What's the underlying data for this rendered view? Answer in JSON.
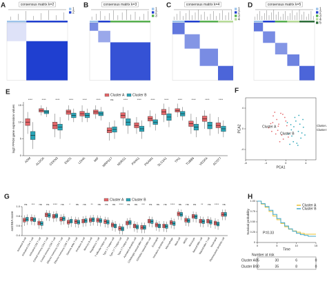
{
  "chart_data": [
    {
      "type": "heatmap",
      "panel": "A",
      "title": "consensus matrix k=2",
      "legend": [
        1,
        2
      ]
    },
    {
      "type": "heatmap",
      "panel": "B",
      "title": "consensus matrix k=3",
      "legend": [
        1,
        2,
        3
      ]
    },
    {
      "type": "heatmap",
      "panel": "C",
      "title": "consensus matrix k=4",
      "legend": [
        1,
        2,
        3,
        4
      ]
    },
    {
      "type": "heatmap",
      "panel": "D",
      "title": "consensus matrix k=5",
      "legend": [
        1,
        2,
        3,
        4,
        5
      ]
    },
    {
      "type": "box",
      "panel": "E",
      "y_label": "log2 FPKM gene expression values",
      "categories": [
        "ADM",
        "ALDOA",
        "CDKN3",
        "ENO1",
        "LDHA",
        "MIF",
        "MRPS17",
        "NDRG1",
        "P4HA1",
        "PGAM1",
        "SLC2A1",
        "TPI1",
        "TUBB6",
        "VEGFA",
        "ACOT7"
      ],
      "significance": [
        "****",
        "****",
        "****",
        "****",
        "****",
        "****",
        "ns",
        "****",
        "****",
        "****",
        "****",
        "****",
        "****",
        "****",
        "****"
      ],
      "ylim": [
        0,
        16
      ],
      "yticks": [
        0,
        5,
        10,
        15
      ],
      "series": [
        {
          "name": "Cluster A",
          "color": "#e4676a",
          "lo": [
            6.5,
            12,
            5.5,
            10.5,
            10,
            11,
            4.5,
            9,
            6.5,
            8.5,
            10,
            11.5,
            6.5,
            8,
            6.5
          ],
          "q1": [
            9,
            13,
            8,
            12.3,
            11.8,
            12.4,
            6.8,
            11.2,
            8.3,
            10.3,
            12.2,
            13,
            8.7,
            10.2,
            8.3
          ],
          "median": [
            10,
            13.5,
            9,
            13,
            12.5,
            13,
            7.5,
            12,
            9,
            11,
            13,
            13.5,
            9.5,
            11,
            9
          ],
          "q3": [
            11,
            14,
            10,
            13.6,
            13.2,
            13.6,
            8.3,
            12.8,
            9.8,
            11.7,
            13.8,
            14,
            10.3,
            11.8,
            9.8
          ],
          "hi": [
            13,
            15,
            12.5,
            15,
            15,
            15,
            10,
            14.5,
            11.5,
            13.5,
            15.5,
            15.5,
            12.5,
            13.5,
            11.5
          ]
        },
        {
          "name": "Cluster B",
          "color": "#2aa6b8",
          "lo": [
            2,
            11.5,
            5,
            10,
            10,
            10.5,
            5,
            6.5,
            5,
            7.5,
            8.5,
            10.5,
            5.5,
            6,
            5.5
          ],
          "q1": [
            4.8,
            12.5,
            7.6,
            11.3,
            11.3,
            11.9,
            7,
            9,
            7.2,
            9.3,
            10.5,
            11.8,
            7.6,
            8,
            7.2
          ],
          "median": [
            6,
            13,
            8.5,
            12,
            12,
            12.5,
            7.8,
            10,
            8,
            10,
            11.5,
            12.5,
            8.5,
            9,
            8
          ],
          "q3": [
            7.2,
            13.5,
            9.4,
            12.7,
            12.7,
            13.1,
            8.6,
            11,
            8.8,
            10.7,
            12.5,
            13.2,
            9.4,
            10,
            8.8
          ],
          "hi": [
            10,
            14.5,
            11.5,
            14,
            14,
            14.5,
            10.5,
            13.5,
            10.5,
            12.5,
            14.5,
            14.5,
            11.5,
            12.5,
            10.5
          ]
        }
      ]
    },
    {
      "type": "scatter",
      "panel": "F",
      "x_label": "PCA1",
      "y_label": "PCA2",
      "annotations": [
        "Cluster A",
        "Cluster B"
      ],
      "xlim": [
        -8,
        6
      ],
      "xticks": [
        -8,
        -4,
        0,
        4
      ],
      "ylim": [
        -6,
        6
      ],
      "yticks": [
        -4,
        0,
        4
      ],
      "series": [
        {
          "name": "Cluster A",
          "color": "#e4676a",
          "x": [
            -3,
            -2.5,
            -2,
            -1.5,
            -1,
            -0.5,
            0,
            -2.8,
            -1.8,
            -0.8,
            0.2,
            -2.2,
            -1.2,
            -0.2,
            -3.4,
            -1.6,
            -0.6,
            0.5,
            -2.6,
            -1.4
          ],
          "values": [
            1,
            2.5,
            -1,
            0.5,
            3,
            -2,
            1.5,
            -0.5,
            1.8,
            -1.2,
            0.6,
            3.2,
            -2.5,
            2.2,
            0.2,
            -0.3,
            2.8,
            -1.6,
            1.2,
            0.9
          ]
        },
        {
          "name": "Cluster B",
          "color": "#2aa6b8",
          "x": [
            0.5,
            1,
            1.5,
            2,
            2.5,
            3,
            3.5,
            0.8,
            1.8,
            2.8,
            1.2,
            2.2,
            3.2,
            0.3,
            1.6,
            2.6,
            3.8,
            1.1,
            2.4,
            3.4
          ],
          "values": [
            -1,
            0.8,
            -2.5,
            1.5,
            -0.5,
            -1.8,
            0.3,
            -3,
            2.2,
            0.9,
            -1.4,
            -2.8,
            -0.8,
            1.2,
            0.4,
            2.6,
            -1.2,
            -0.2,
            -3.2,
            1.8
          ]
        }
      ]
    },
    {
      "type": "box",
      "panel": "G",
      "y_label": "ssGSEA score",
      "categories": [
        "Activated B cell",
        "Activated CD4 T cell",
        "Activated CD8 T cell",
        "Central memory CD4 T cell",
        "Central memory CD8 T cell",
        "Effector memeory CD4 T cell",
        "Effector memeory CD8 T cell",
        "Gamma delta T cell",
        "Immature B cell",
        "Memory B cell",
        "Regulatory T cell",
        "T follicular helper cell",
        "Type 1 T helper cell",
        "Type 17 T helper cell",
        "Type 2 T helper cell",
        "Activated dendritic cell",
        "CD56bright natural killer cell",
        "CD56dim natural killer cell",
        "Eosinophil",
        "Immature dendritic cell",
        "Macrophage",
        "Mast cell",
        "MDSC",
        "Monocyte",
        "Natural killer cell",
        "Natural killer T cell",
        "Neutrophil",
        "Plasmacytoid dendritic cell"
      ],
      "significance": [
        "ns",
        "***",
        "ns",
        "ns",
        "****",
        "ns",
        "*",
        "ns",
        "ns",
        "**",
        "ns",
        "ns",
        "ns",
        "****",
        "ns",
        "ns",
        "***",
        "ns",
        "ns",
        "ns",
        "****",
        "ns",
        "ns",
        "ns",
        "**",
        "ns",
        "****",
        "ns"
      ],
      "ylim": [
        0.4,
        1.0
      ],
      "yticks": [
        0.4,
        0.6,
        0.8,
        {
          "value": 1,
          "label": "1.0"
        }
      ],
      "series": [
        {
          "name": "Cluster A",
          "color": "#e4676a",
          "lo": [
            0.6,
            0.62,
            0.54,
            0.71,
            0.68,
            0.62,
            0.56,
            0.57,
            0.58,
            0.6,
            0.6,
            0.57,
            0.5,
            0.43,
            0.54,
            0.48,
            0.45,
            0.58,
            0.5,
            0.48,
            0.55,
            0.73,
            0.6,
            0.68,
            0.58,
            0.58,
            0.54,
            0.72
          ],
          "q1": [
            0.68,
            0.7,
            0.62,
            0.79,
            0.76,
            0.7,
            0.64,
            0.65,
            0.66,
            0.68,
            0.68,
            0.65,
            0.58,
            0.51,
            0.62,
            0.56,
            0.53,
            0.66,
            0.58,
            0.56,
            0.63,
            0.81,
            0.68,
            0.76,
            0.66,
            0.66,
            0.62,
            0.8
          ],
          "median": [
            0.72,
            0.74,
            0.66,
            0.83,
            0.8,
            0.74,
            0.68,
            0.69,
            0.7,
            0.72,
            0.72,
            0.69,
            0.62,
            0.55,
            0.66,
            0.6,
            0.57,
            0.7,
            0.62,
            0.6,
            0.67,
            0.85,
            0.72,
            0.8,
            0.7,
            0.7,
            0.66,
            0.84
          ],
          "q3": [
            0.76,
            0.78,
            0.7,
            0.87,
            0.84,
            0.78,
            0.72,
            0.73,
            0.74,
            0.76,
            0.76,
            0.73,
            0.66,
            0.59,
            0.7,
            0.64,
            0.61,
            0.74,
            0.66,
            0.64,
            0.71,
            0.89,
            0.76,
            0.84,
            0.74,
            0.74,
            0.7,
            0.88
          ],
          "hi": [
            0.82,
            0.84,
            0.76,
            0.93,
            0.9,
            0.84,
            0.78,
            0.79,
            0.8,
            0.82,
            0.82,
            0.79,
            0.72,
            0.65,
            0.76,
            0.7,
            0.67,
            0.8,
            0.72,
            0.7,
            0.77,
            0.95,
            0.82,
            0.9,
            0.8,
            0.8,
            0.76,
            0.94
          ]
        },
        {
          "name": "Cluster B",
          "color": "#2aa6b8",
          "lo": [
            0.62,
            0.61,
            0.53,
            0.7,
            0.69,
            0.63,
            0.58,
            0.56,
            0.59,
            0.61,
            0.59,
            0.56,
            0.48,
            0.42,
            0.55,
            0.46,
            0.45,
            0.57,
            0.48,
            0.47,
            0.53,
            0.72,
            0.59,
            0.67,
            0.57,
            0.56,
            0.52,
            0.72
          ],
          "q1": [
            0.7,
            0.69,
            0.61,
            0.78,
            0.77,
            0.71,
            0.66,
            0.64,
            0.67,
            0.69,
            0.67,
            0.64,
            0.56,
            0.5,
            0.63,
            0.54,
            0.53,
            0.65,
            0.56,
            0.55,
            0.61,
            0.8,
            0.67,
            0.75,
            0.65,
            0.64,
            0.6,
            0.8
          ],
          "median": [
            0.74,
            0.73,
            0.65,
            0.82,
            0.81,
            0.75,
            0.7,
            0.68,
            0.71,
            0.73,
            0.71,
            0.68,
            0.6,
            0.54,
            0.67,
            0.58,
            0.57,
            0.69,
            0.6,
            0.59,
            0.65,
            0.84,
            0.71,
            0.79,
            0.69,
            0.68,
            0.64,
            0.84
          ],
          "q3": [
            0.78,
            0.77,
            0.69,
            0.86,
            0.85,
            0.79,
            0.74,
            0.72,
            0.75,
            0.77,
            0.75,
            0.72,
            0.64,
            0.58,
            0.71,
            0.62,
            0.61,
            0.73,
            0.64,
            0.63,
            0.69,
            0.88,
            0.75,
            0.83,
            0.73,
            0.72,
            0.68,
            0.88
          ],
          "hi": [
            0.84,
            0.83,
            0.75,
            0.92,
            0.91,
            0.85,
            0.8,
            0.78,
            0.81,
            0.83,
            0.81,
            0.78,
            0.7,
            0.64,
            0.77,
            0.68,
            0.67,
            0.79,
            0.7,
            0.69,
            0.75,
            0.94,
            0.81,
            0.89,
            0.79,
            0.78,
            0.74,
            0.94
          ]
        }
      ]
    },
    {
      "type": "survival",
      "panel": "H",
      "x_label": "Time",
      "y_label": "Survival probability",
      "annotation": "P=0.33",
      "risk_title": "Number at risk",
      "x": [
        0,
        1,
        2,
        3,
        4,
        5,
        6,
        7,
        8,
        9,
        10,
        11,
        12,
        13,
        14,
        15
      ],
      "xlim": [
        0,
        15
      ],
      "xticks": [
        0,
        5,
        10,
        15
      ],
      "ylim": [
        0,
        1
      ],
      "yticks": [
        0,
        {
          "value": 0.25,
          "label": "0.25"
        },
        {
          "value": 0.5,
          "label": "0.50"
        },
        {
          "value": 0.75,
          "label": "0.75"
        },
        {
          "value": 1,
          "label": "1.00"
        }
      ],
      "series": [
        {
          "name": "Cluster A",
          "color": "#e8c130",
          "values": [
            1,
            0.93,
            0.85,
            0.75,
            0.64,
            0.55,
            0.46,
            0.38,
            0.32,
            0.28,
            0.25,
            0.22,
            0.2,
            0.2,
            0.2,
            0.2
          ],
          "at_risk": [
            85,
            30,
            6,
            0
          ]
        },
        {
          "name": "Cluster B",
          "color": "#3fa7c9",
          "values": [
            1,
            0.94,
            0.87,
            0.78,
            0.68,
            0.58,
            0.48,
            0.4,
            0.33,
            0.27,
            0.22,
            0.19,
            0.17,
            0.15,
            0.15,
            0.15
          ],
          "at_risk": [
            90,
            35,
            8,
            0
          ]
        }
      ]
    }
  ]
}
